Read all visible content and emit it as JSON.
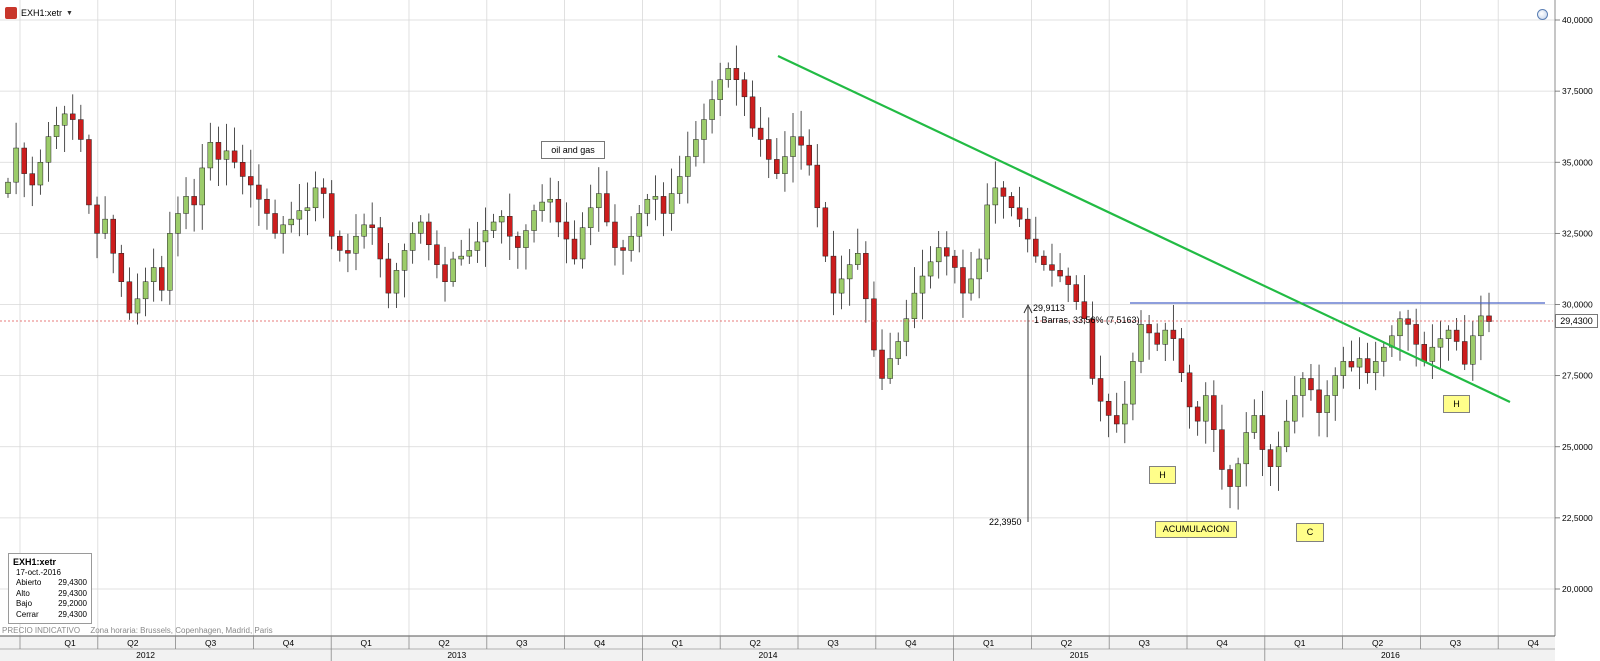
{
  "ticker": {
    "symbol": "EXH1:xetr"
  },
  "info_box": {
    "title": "EXH1:xetr",
    "date": "17-oct.-2016",
    "rows": [
      {
        "label": "Abierto",
        "value": "29,4300"
      },
      {
        "label": "Alto",
        "value": "29,4300"
      },
      {
        "label": "Bajo",
        "value": "29,2000"
      },
      {
        "label": "Cerrar",
        "value": "29,4300"
      }
    ]
  },
  "footnote": {
    "indicative": "PRECIO INDICATIVO",
    "timezone": "Zona horaria: Brussels, Copenhagen, Madrid, Paris"
  },
  "annotations": {
    "chart_label": "oil and gas",
    "measure_top_value": "29,9113",
    "measure_detail": "1 Barras, 33,56% (7,5163)",
    "measure_bottom_value": "22,3950",
    "last_price": "29,4300",
    "shoulder_left": "H",
    "shoulder_right": "H",
    "head": "C",
    "accumulation": "ACUMULACION"
  },
  "colors": {
    "up_candle": "#9ccc6a",
    "down_candle": "#cc1d1d",
    "trendline": "#22bb44",
    "neckline": "#4a64c8",
    "last_price_line": "#e05050",
    "grid": "#d8d8d8"
  },
  "chart_data": {
    "type": "candlestick",
    "y_axis": {
      "range": [
        18500,
        40500
      ],
      "ticks": [
        "20,0000",
        "22,5000",
        "25,0000",
        "27,5000",
        "30,0000",
        "32,5000",
        "35,0000",
        "37,5000",
        "40,0000"
      ]
    },
    "x_axis": {
      "quarters": [
        "Q1",
        "Q2",
        "Q3",
        "Q4",
        "Q1",
        "Q2",
        "Q3",
        "Q4",
        "Q1",
        "Q2",
        "Q3",
        "Q4",
        "Q1",
        "Q2",
        "Q3",
        "Q4",
        "Q1",
        "Q2",
        "Q3",
        "Q4"
      ],
      "years": [
        "2012",
        "2013",
        "2014",
        "2015",
        "2016"
      ]
    },
    "weekly_close": [
      34.3,
      35.5,
      34.6,
      34.2,
      35.0,
      35.9,
      36.3,
      36.7,
      36.5,
      35.8,
      33.5,
      32.5,
      33.0,
      31.8,
      30.8,
      29.7,
      30.2,
      30.8,
      31.3,
      30.5,
      32.5,
      33.2,
      33.8,
      33.5,
      34.8,
      35.7,
      35.1,
      35.4,
      35.0,
      34.5,
      34.2,
      33.7,
      33.2,
      32.5,
      32.8,
      33.0,
      33.3,
      33.4,
      34.1,
      33.9,
      32.4,
      31.9,
      31.8,
      32.4,
      32.8,
      32.7,
      31.6,
      30.4,
      31.2,
      31.9,
      32.5,
      32.9,
      32.1,
      31.4,
      30.8,
      31.6,
      31.7,
      31.9,
      32.2,
      32.6,
      32.9,
      33.1,
      32.4,
      32.0,
      32.6,
      33.3,
      33.6,
      33.7,
      32.9,
      32.3,
      31.6,
      32.7,
      33.4,
      33.9,
      32.9,
      32.0,
      31.9,
      32.4,
      33.2,
      33.7,
      33.8,
      33.2,
      33.9,
      34.5,
      35.2,
      35.8,
      36.5,
      37.2,
      37.9,
      38.3,
      37.9,
      37.3,
      36.2,
      35.8,
      35.1,
      34.6,
      35.2,
      35.9,
      35.6,
      34.9,
      33.4,
      31.7,
      30.4,
      30.9,
      31.4,
      31.8,
      30.2,
      28.4,
      27.4,
      28.1,
      28.7,
      29.5,
      30.4,
      31.0,
      31.5,
      32.0,
      31.7,
      31.3,
      30.4,
      30.9,
      31.6,
      33.5,
      34.1,
      33.8,
      33.4,
      33.0,
      32.3,
      31.7,
      31.4,
      31.2,
      31.0,
      30.7,
      30.1,
      29.5,
      27.4,
      26.6,
      26.1,
      25.8,
      26.5,
      28.0,
      29.3,
      29.0,
      28.6,
      29.1,
      28.8,
      27.6,
      26.4,
      25.9,
      26.8,
      25.6,
      24.2,
      23.6,
      24.4,
      25.5,
      26.1,
      24.9,
      24.3,
      25.0,
      25.9,
      26.8,
      27.4,
      27.0,
      26.2,
      26.8,
      27.5,
      28.0,
      27.8,
      28.1,
      27.6,
      28.0,
      28.5,
      28.9,
      29.5,
      29.3,
      28.6,
      28.0,
      28.5,
      28.8,
      29.1,
      28.7,
      27.9,
      28.9,
      29.6,
      29.4
    ]
  }
}
